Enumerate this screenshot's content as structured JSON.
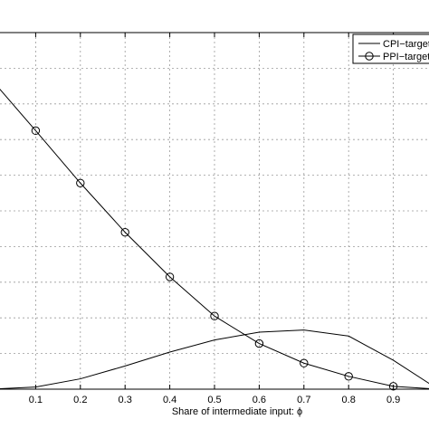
{
  "chart_data": {
    "type": "line",
    "title": "",
    "xlabel": "Share of intermediate input: ϕ",
    "ylabel": "",
    "xlim": [
      0,
      1
    ],
    "x_ticks": [
      0.1,
      0.2,
      0.3,
      0.4,
      0.5,
      0.6,
      0.7,
      0.8,
      0.9
    ],
    "x_tick_labels": [
      "0.1",
      "0.2",
      "0.3",
      "0.4",
      "0.5",
      "0.6",
      "0.7",
      "0.8",
      "0.9"
    ],
    "ylim": [
      0,
      1
    ],
    "grid": true,
    "legend": "top-right",
    "x": [
      0,
      0.1,
      0.2,
      0.3,
      0.4,
      0.5,
      0.6,
      0.7,
      0.8,
      0.9,
      1.0
    ],
    "series": [
      {
        "name": "CPI−target",
        "marker": "none",
        "values": [
          0.0,
          0.006,
          0.029,
          0.065,
          0.104,
          0.138,
          0.16,
          0.166,
          0.149,
          0.081,
          0.0
        ]
      },
      {
        "name": "PPI−target",
        "marker": "circle",
        "values": [
          0.87,
          0.725,
          0.578,
          0.44,
          0.315,
          0.205,
          0.128,
          0.073,
          0.036,
          0.008,
          0.0
        ]
      }
    ]
  }
}
